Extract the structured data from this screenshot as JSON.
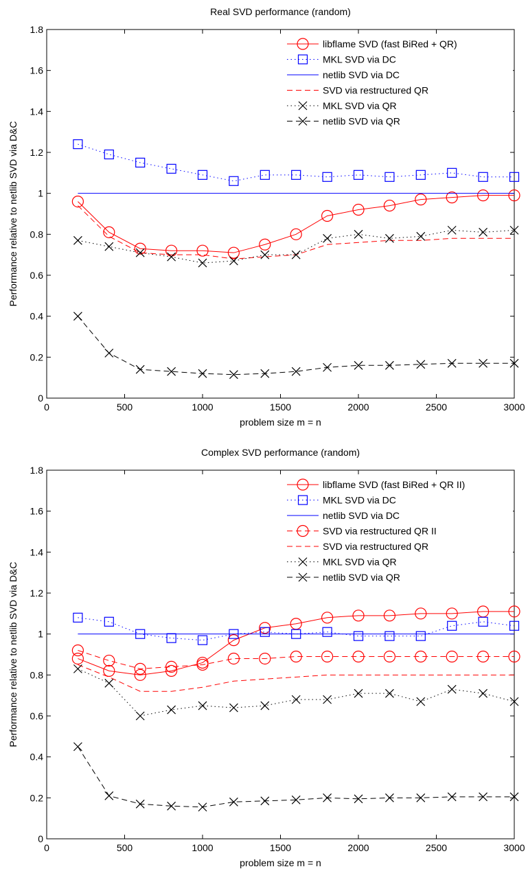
{
  "chart_data": [
    {
      "type": "line",
      "title": "Real SVD performance (random)",
      "xlabel": "problem size m = n",
      "ylabel": "Performance relative to netlib SVD via D&C",
      "xlim": [
        0,
        3000
      ],
      "ylim": [
        0,
        1.8
      ],
      "xticks": [
        0,
        500,
        1000,
        1500,
        2000,
        2500,
        3000
      ],
      "yticks": [
        0,
        0.2,
        0.4,
        0.6,
        0.8,
        1,
        1.2,
        1.4,
        1.6,
        1.8
      ],
      "grid": false,
      "legend_position": "top-right",
      "x": [
        200,
        400,
        600,
        800,
        1000,
        1200,
        1400,
        1600,
        1800,
        2000,
        2200,
        2400,
        2600,
        2800,
        3000
      ],
      "series": [
        {
          "name": "libflame SVD (fast BiRed + QR)",
          "color": "#ff0000",
          "dash": "solid",
          "marker": "circle",
          "values": [
            0.96,
            0.81,
            0.73,
            0.72,
            0.72,
            0.71,
            0.75,
            0.8,
            0.89,
            0.92,
            0.94,
            0.97,
            0.98,
            0.99,
            0.99
          ]
        },
        {
          "name": "MKL SVD via DC",
          "color": "#0000ff",
          "dash": "dotted",
          "marker": "square",
          "values": [
            1.24,
            1.19,
            1.15,
            1.12,
            1.09,
            1.06,
            1.09,
            1.09,
            1.08,
            1.09,
            1.08,
            1.09,
            1.1,
            1.08,
            1.08
          ]
        },
        {
          "name": "netlib SVD via DC",
          "color": "#0000ff",
          "dash": "solid",
          "marker": "none",
          "values": [
            1,
            1,
            1,
            1,
            1,
            1,
            1,
            1,
            1,
            1,
            1,
            1,
            1,
            1,
            1
          ]
        },
        {
          "name": "SVD via restructured QR",
          "color": "#ff0000",
          "dash": "dashed",
          "marker": "none",
          "values": [
            0.94,
            0.79,
            0.71,
            0.7,
            0.7,
            0.68,
            0.69,
            0.7,
            0.75,
            0.76,
            0.77,
            0.77,
            0.78,
            0.78,
            0.78
          ]
        },
        {
          "name": "MKL SVD via QR",
          "color": "#000000",
          "dash": "dotted",
          "marker": "x",
          "values": [
            0.77,
            0.74,
            0.71,
            0.69,
            0.66,
            0.67,
            0.7,
            0.7,
            0.78,
            0.8,
            0.78,
            0.79,
            0.82,
            0.81,
            0.82
          ]
        },
        {
          "name": "netlib SVD via QR",
          "color": "#000000",
          "dash": "dashed",
          "marker": "x",
          "values": [
            0.4,
            0.22,
            0.14,
            0.13,
            0.12,
            0.115,
            0.12,
            0.13,
            0.15,
            0.16,
            0.16,
            0.165,
            0.17,
            0.17,
            0.17
          ]
        }
      ]
    },
    {
      "type": "line",
      "title": "Complex SVD performance (random)",
      "xlabel": "problem size m = n",
      "ylabel": "Performance relative to netlib SVD via D&C",
      "xlim": [
        0,
        3000
      ],
      "ylim": [
        0,
        1.8
      ],
      "xticks": [
        0,
        500,
        1000,
        1500,
        2000,
        2500,
        3000
      ],
      "yticks": [
        0,
        0.2,
        0.4,
        0.6,
        0.8,
        1,
        1.2,
        1.4,
        1.6,
        1.8
      ],
      "grid": false,
      "legend_position": "top-right",
      "x": [
        200,
        400,
        600,
        800,
        1000,
        1200,
        1400,
        1600,
        1800,
        2000,
        2200,
        2400,
        2600,
        2800,
        3000
      ],
      "series": [
        {
          "name": "libflame SVD (fast BiRed + QR II)",
          "color": "#ff0000",
          "dash": "solid",
          "marker": "circle",
          "values": [
            0.88,
            0.82,
            0.8,
            0.82,
            0.86,
            0.97,
            1.03,
            1.05,
            1.08,
            1.09,
            1.09,
            1.1,
            1.1,
            1.11,
            1.11
          ]
        },
        {
          "name": "MKL SVD via DC",
          "color": "#0000ff",
          "dash": "dotted",
          "marker": "square",
          "values": [
            1.08,
            1.06,
            1.0,
            0.98,
            0.97,
            1.0,
            1.01,
            1.0,
            1.01,
            0.99,
            0.99,
            0.99,
            1.04,
            1.06,
            1.04
          ]
        },
        {
          "name": "netlib SVD via DC",
          "color": "#0000ff",
          "dash": "solid",
          "marker": "none",
          "values": [
            1,
            1,
            1,
            1,
            1,
            1,
            1,
            1,
            1,
            1,
            1,
            1,
            1,
            1,
            1
          ]
        },
        {
          "name": "SVD via restructured QR II",
          "color": "#ff0000",
          "dash": "dashed",
          "marker": "circle",
          "values": [
            0.92,
            0.87,
            0.83,
            0.84,
            0.85,
            0.88,
            0.88,
            0.89,
            0.89,
            0.89,
            0.89,
            0.89,
            0.89,
            0.89,
            0.89
          ]
        },
        {
          "name": "SVD via restructured QR",
          "color": "#ff0000",
          "dash": "dashed",
          "marker": "none",
          "values": [
            0.85,
            0.79,
            0.72,
            0.72,
            0.74,
            0.77,
            0.78,
            0.79,
            0.8,
            0.8,
            0.8,
            0.8,
            0.8,
            0.8,
            0.8
          ]
        },
        {
          "name": "MKL SVD via QR",
          "color": "#000000",
          "dash": "dotted",
          "marker": "x",
          "values": [
            0.83,
            0.76,
            0.6,
            0.63,
            0.65,
            0.64,
            0.65,
            0.68,
            0.68,
            0.71,
            0.71,
            0.67,
            0.73,
            0.71,
            0.67
          ]
        },
        {
          "name": "netlib SVD via QR",
          "color": "#000000",
          "dash": "dashed",
          "marker": "x",
          "values": [
            0.45,
            0.21,
            0.17,
            0.16,
            0.155,
            0.18,
            0.185,
            0.19,
            0.2,
            0.195,
            0.2,
            0.2,
            0.205,
            0.205,
            0.205
          ]
        }
      ]
    }
  ]
}
